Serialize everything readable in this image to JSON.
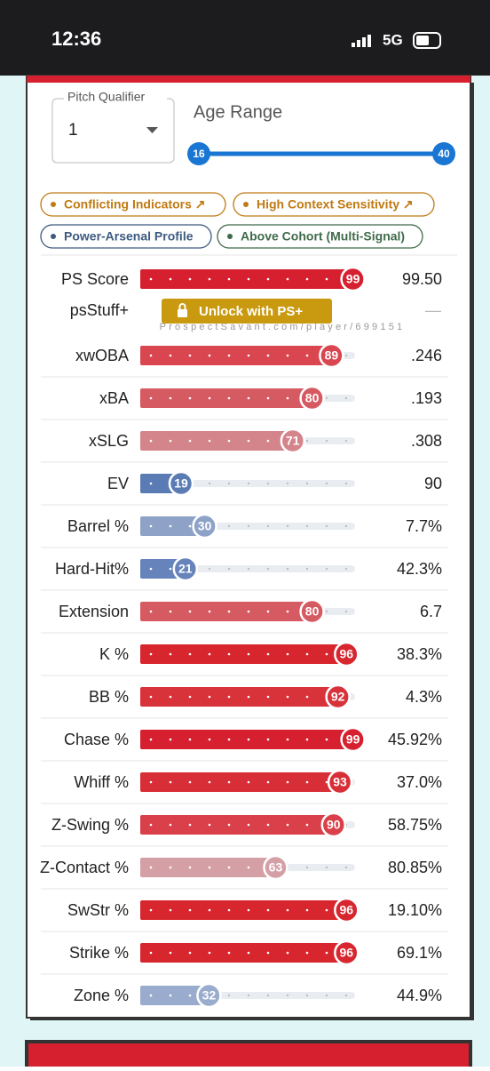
{
  "status_bar": {
    "time": "12:36",
    "network": "5G"
  },
  "filters": {
    "pitch_qualifier": {
      "label": "Pitch Qualifier",
      "value": "1"
    },
    "age_range": {
      "label": "Age Range",
      "min": 16,
      "max": 40
    }
  },
  "tags": [
    {
      "text": "Conflicting Indicators ↗",
      "color": "#c07a12"
    },
    {
      "text": "High Context Sensitivity ↗",
      "color": "#c07a12"
    },
    {
      "text": "Power-Arsenal Profile",
      "color": "#3d5a80"
    },
    {
      "text": "Above Cohort (Multi-Signal)",
      "color": "#3f6b4a"
    }
  ],
  "locked": {
    "label": "psStuff+",
    "button": "Unlock with PS+",
    "value": "—"
  },
  "watermark": "ProspectSavant.com/player/699151",
  "metrics": [
    {
      "label": "PS Score",
      "percentile": 99,
      "value": "99.50",
      "color": "#d7202f"
    },
    {
      "label": "xwOBA",
      "percentile": 89,
      "value": ".246",
      "color": "#d9464f"
    },
    {
      "label": "xBA",
      "percentile": 80,
      "value": ".193",
      "color": "#d65a62"
    },
    {
      "label": "xSLG",
      "percentile": 71,
      "value": ".308",
      "color": "#d4848b"
    },
    {
      "label": "EV",
      "percentile": 19,
      "value": "90",
      "color": "#5b7bb5"
    },
    {
      "label": "Barrel %",
      "percentile": 30,
      "value": "7.7%",
      "color": "#8ea2c8"
    },
    {
      "label": "Hard-Hit%",
      "percentile": 21,
      "value": "42.3%",
      "color": "#6683bb"
    },
    {
      "label": "Extension",
      "percentile": 80,
      "value": "6.7",
      "color": "#d65a62"
    },
    {
      "label": "K %",
      "percentile": 96,
      "value": "38.3%",
      "color": "#d8262f"
    },
    {
      "label": "BB %",
      "percentile": 92,
      "value": "4.3%",
      "color": "#d8323b"
    },
    {
      "label": "Chase %",
      "percentile": 99,
      "value": "45.92%",
      "color": "#d7202f"
    },
    {
      "label": "Whiff %",
      "percentile": 93,
      "value": "37.0%",
      "color": "#d82e37"
    },
    {
      "label": "Z-Swing %",
      "percentile": 90,
      "value": "58.75%",
      "color": "#d9404a"
    },
    {
      "label": "Z-Contact %",
      "percentile": 63,
      "value": "80.85%",
      "color": "#d4a0a6"
    },
    {
      "label": "SwStr %",
      "percentile": 96,
      "value": "19.10%",
      "color": "#d8262f"
    },
    {
      "label": "Strike %",
      "percentile": 96,
      "value": "69.1%",
      "color": "#d8262f"
    },
    {
      "label": "Zone %",
      "percentile": 32,
      "value": "44.9%",
      "color": "#9aaccd"
    }
  ]
}
